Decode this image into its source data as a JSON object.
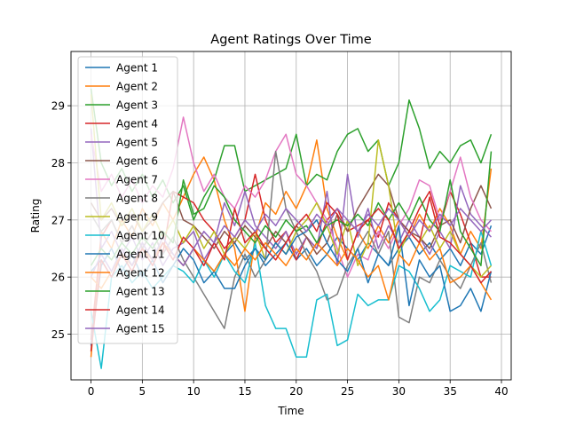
{
  "chart_data": {
    "type": "line",
    "title": "Agent Ratings Over Time",
    "xlabel": "Time",
    "ylabel": "Rating",
    "xlim": [
      -1.95,
      40.95
    ],
    "ylim": [
      24.2,
      29.95
    ],
    "xticks": [
      0,
      5,
      10,
      15,
      20,
      25,
      30,
      35,
      40
    ],
    "yticks": [
      25,
      26,
      27,
      28,
      29
    ],
    "grid": true,
    "legend_position": "top-left",
    "colors": [
      "#1f77b4",
      "#ff7f0e",
      "#2ca02c",
      "#d62728",
      "#9467bd",
      "#8c564b",
      "#e377c2",
      "#7f7f7f",
      "#bcbd22",
      "#17becf",
      "#1f77b4",
      "#ff7f0e",
      "#2ca02c",
      "#d62728",
      "#9467bd"
    ],
    "x": [
      0,
      1,
      2,
      3,
      4,
      5,
      6,
      7,
      8,
      9,
      10,
      11,
      12,
      13,
      14,
      15,
      16,
      17,
      18,
      19,
      20,
      21,
      22,
      23,
      24,
      25,
      26,
      27,
      28,
      29,
      30,
      31,
      32,
      33,
      34,
      35,
      36,
      37,
      38,
      39
    ],
    "series": [
      {
        "name": "Agent 1",
        "values": [
          26.1,
          26.3,
          26.0,
          26.4,
          26.2,
          26.5,
          26.3,
          26.6,
          26.4,
          26.2,
          26.5,
          26.3,
          26.1,
          26.4,
          26.6,
          26.3,
          26.5,
          26.2,
          26.4,
          26.6,
          26.3,
          26.5,
          26.2,
          26.4,
          26.7,
          26.5,
          26.3,
          26.6,
          26.4,
          26.2,
          26.5,
          26.7,
          26.4,
          26.6,
          26.3,
          26.5,
          26.2,
          26.6,
          26.4,
          26.9
        ]
      },
      {
        "name": "Agent 2",
        "values": [
          24.6,
          26.8,
          26.5,
          27.0,
          26.7,
          27.2,
          26.9,
          27.3,
          27.0,
          27.4,
          27.8,
          28.1,
          27.7,
          27.0,
          26.5,
          25.4,
          26.7,
          27.3,
          27.1,
          27.5,
          27.2,
          27.6,
          28.4,
          27.2,
          26.7,
          26.3,
          26.8,
          26.5,
          26.9,
          26.6,
          27.0,
          26.7,
          27.1,
          26.8,
          27.2,
          26.9,
          26.4,
          26.8,
          26.5,
          27.9
        ]
      },
      {
        "name": "Agent 3",
        "values": [
          29.3,
          28.0,
          27.6,
          27.9,
          27.5,
          27.8,
          27.4,
          27.7,
          27.3,
          27.6,
          27.0,
          27.4,
          27.7,
          28.3,
          28.3,
          27.5,
          27.6,
          27.7,
          27.8,
          27.9,
          28.5,
          27.6,
          27.8,
          27.7,
          28.2,
          28.5,
          28.6,
          28.2,
          28.4,
          27.6,
          28.0,
          29.1,
          28.6,
          27.9,
          28.2,
          28.0,
          28.3,
          28.4,
          28.0,
          28.5
        ]
      },
      {
        "name": "Agent 4",
        "values": [
          24.9,
          26.7,
          27.0,
          26.6,
          26.9,
          26.5,
          26.8,
          26.4,
          27.5,
          27.4,
          27.3,
          27.0,
          26.8,
          26.5,
          26.7,
          27.0,
          27.8,
          27.0,
          26.6,
          26.8,
          26.3,
          26.7,
          26.5,
          27.0,
          27.2,
          26.8,
          26.9,
          27.0,
          26.7,
          27.3,
          27.0,
          26.8,
          27.2,
          27.5,
          26.9,
          27.5,
          27.1,
          26.6,
          26.0,
          26.0
        ]
      },
      {
        "name": "Agent 5",
        "values": [
          28.6,
          26.5,
          26.8,
          26.4,
          26.7,
          26.3,
          26.6,
          26.2,
          26.5,
          26.6,
          26.8,
          26.3,
          26.6,
          27.3,
          26.9,
          27.5,
          26.9,
          26.7,
          26.5,
          26.8,
          26.4,
          26.7,
          26.5,
          27.5,
          26.2,
          27.8,
          26.7,
          27.2,
          26.5,
          26.9,
          26.6,
          27.0,
          26.7,
          26.4,
          26.8,
          26.5,
          27.6,
          27.1,
          26.9,
          26.7
        ]
      },
      {
        "name": "Agent 6",
        "values": [
          27.3,
          27.0,
          27.2,
          26.9,
          27.1,
          26.8,
          27.0,
          27.3,
          27.5,
          27.0,
          26.9,
          26.7,
          26.5,
          26.8,
          26.6,
          26.9,
          26.7,
          26.5,
          26.8,
          26.6,
          26.9,
          26.7,
          26.4,
          26.6,
          27.1,
          26.8,
          27.2,
          27.5,
          27.8,
          27.6,
          27.0,
          26.8,
          26.7,
          26.5,
          26.9,
          27.0,
          26.6,
          27.2,
          27.6,
          27.2
        ]
      },
      {
        "name": "Agent 7",
        "values": [
          28.5,
          27.5,
          27.8,
          27.4,
          27.7,
          27.3,
          27.6,
          27.4,
          27.9,
          28.8,
          28.0,
          27.5,
          27.8,
          27.4,
          27.2,
          27.6,
          27.4,
          27.7,
          28.2,
          28.5,
          27.8,
          27.6,
          27.3,
          27.0,
          26.5,
          26.0,
          26.4,
          26.3,
          26.8,
          26.5,
          26.9,
          27.2,
          27.7,
          27.6,
          27.0,
          27.5,
          28.1,
          27.4,
          27.0,
          26.8
        ]
      },
      {
        "name": "Agent 8",
        "values": [
          27.1,
          26.8,
          27.0,
          26.6,
          26.9,
          26.5,
          26.8,
          26.4,
          26.7,
          26.3,
          26.0,
          25.7,
          25.4,
          25.1,
          26.0,
          26.4,
          26.0,
          26.3,
          28.2,
          27.2,
          26.8,
          26.4,
          26.1,
          25.6,
          25.7,
          26.2,
          26.5,
          26.8,
          26.4,
          26.8,
          25.3,
          25.2,
          26.0,
          25.9,
          26.3,
          26.0,
          25.8,
          26.2,
          26.6,
          25.9
        ]
      },
      {
        "name": "Agent 9",
        "values": [
          29.2,
          27.0,
          27.3,
          26.9,
          27.2,
          26.8,
          27.1,
          26.7,
          27.0,
          26.6,
          26.9,
          26.5,
          26.8,
          26.4,
          26.7,
          26.5,
          26.8,
          26.3,
          26.6,
          26.4,
          26.8,
          27.0,
          27.3,
          26.9,
          26.4,
          27.0,
          26.2,
          26.6,
          28.4,
          27.6,
          26.4,
          26.8,
          26.6,
          26.9,
          26.5,
          26.8,
          26.4,
          26.2,
          26.0,
          26.2
        ]
      },
      {
        "name": "Agent 10",
        "values": [
          25.4,
          24.4,
          26.0,
          26.2,
          25.9,
          26.1,
          25.8,
          26.0,
          26.2,
          26.1,
          25.9,
          26.3,
          26.0,
          26.4,
          26.1,
          25.9,
          26.6,
          25.5,
          25.1,
          25.1,
          24.6,
          24.6,
          25.6,
          25.7,
          24.8,
          24.9,
          25.7,
          25.5,
          25.6,
          25.6,
          26.2,
          26.1,
          25.8,
          25.4,
          25.6,
          26.2,
          26.1,
          26.0,
          26.8,
          26.2
        ]
      },
      {
        "name": "Agent 11",
        "values": [
          24.8,
          26.2,
          26.5,
          26.1,
          26.4,
          26.0,
          26.3,
          25.9,
          26.2,
          26.5,
          26.3,
          25.9,
          26.1,
          25.8,
          25.8,
          26.2,
          26.5,
          26.3,
          26.6,
          26.4,
          26.7,
          26.8,
          27.0,
          26.6,
          26.3,
          26.1,
          26.5,
          25.9,
          26.4,
          26.2,
          26.9,
          25.5,
          26.3,
          26.0,
          26.2,
          25.4,
          25.5,
          25.8,
          25.4,
          26.1
        ]
      },
      {
        "name": "Agent 12",
        "values": [
          26.0,
          25.8,
          26.1,
          26.4,
          26.2,
          26.5,
          26.3,
          26.6,
          26.4,
          26.2,
          26.5,
          26.3,
          26.1,
          26.4,
          26.2,
          26.5,
          26.3,
          26.6,
          26.4,
          26.2,
          26.5,
          26.3,
          26.6,
          26.4,
          26.2,
          26.5,
          26.3,
          26.0,
          26.2,
          25.6,
          26.4,
          26.2,
          26.6,
          26.3,
          26.5,
          25.9,
          26.0,
          26.2,
          25.9,
          25.6
        ]
      },
      {
        "name": "Agent 13",
        "values": [
          26.2,
          26.5,
          26.3,
          26.6,
          26.4,
          26.7,
          26.5,
          26.8,
          26.6,
          27.7,
          27.1,
          27.2,
          27.6,
          27.4,
          27.0,
          26.8,
          26.6,
          26.9,
          26.7,
          27.0,
          26.8,
          26.9,
          26.6,
          26.9,
          27.0,
          26.9,
          27.1,
          26.9,
          27.3,
          27.0,
          27.3,
          27.0,
          27.4,
          27.0,
          26.8,
          27.7,
          26.8,
          26.5,
          26.2,
          28.2
        ]
      },
      {
        "name": "Agent 14",
        "values": [
          24.7,
          26.3,
          26.0,
          26.4,
          26.1,
          26.5,
          26.2,
          26.6,
          26.3,
          26.7,
          26.5,
          26.2,
          26.6,
          26.3,
          27.2,
          26.6,
          26.8,
          26.5,
          26.3,
          26.6,
          26.9,
          27.1,
          26.8,
          27.3,
          27.1,
          26.3,
          26.8,
          27.0,
          27.2,
          27.0,
          26.5,
          26.8,
          26.6,
          27.4,
          26.7,
          26.6,
          26.4,
          26.2,
          25.9,
          26.1
        ]
      },
      {
        "name": "Agent 15",
        "values": [
          26.0,
          26.4,
          26.1,
          26.5,
          26.2,
          26.6,
          26.3,
          26.7,
          26.4,
          26.2,
          26.5,
          26.8,
          26.6,
          26.9,
          26.7,
          27.0,
          26.8,
          27.1,
          26.9,
          27.2,
          27.0,
          26.8,
          27.1,
          26.9,
          27.2,
          27.0,
          26.8,
          27.1,
          26.9,
          27.2,
          27.0,
          26.7,
          27.0,
          26.8,
          27.1,
          26.9,
          27.2,
          27.0,
          26.8,
          27.0
        ]
      }
    ]
  }
}
